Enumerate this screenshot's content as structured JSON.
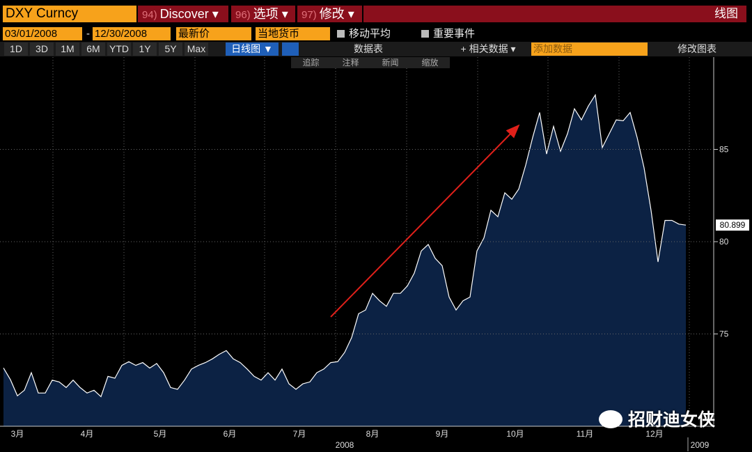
{
  "toolbar": {
    "security": "DXY Curncy",
    "menus": [
      {
        "num": "94)",
        "label": "Discover ▾"
      },
      {
        "num": "96)",
        "label": "选项 ▾"
      },
      {
        "num": "97)",
        "label": "修改 ▾"
      }
    ],
    "view_title": "线图"
  },
  "controls": {
    "start_date": "03/01/2008",
    "date_sep": "-",
    "end_date": "12/30/2008",
    "price_field": "最新价",
    "currency": "当地货币",
    "checkboxes": [
      "移动平均",
      "重要事件"
    ]
  },
  "range_buttons": [
    "1D",
    "3D",
    "1M",
    "6M",
    "YTD",
    "1Y",
    "5Y",
    "Max"
  ],
  "chart_style": "日线图 ▼",
  "data_table": "数据表",
  "related": "+ 相关数据 ▾",
  "add_data": "添加数据",
  "edit_chart": "修改图表",
  "tools": [
    "追踪",
    "注释",
    "新闻",
    "缩放"
  ],
  "watermark": "招财迪女侠",
  "chart_data": {
    "type": "area",
    "color": "#0c2244",
    "line_color": "#ffffff",
    "values": [
      73.16,
      72.52,
      71.65,
      71.95,
      72.9,
      71.8,
      71.8,
      72.5,
      72.4,
      72.1,
      72.5,
      72.1,
      71.8,
      71.95,
      71.6,
      72.7,
      72.6,
      73.3,
      73.5,
      73.3,
      73.45,
      73.15,
      73.4,
      72.9,
      72.1,
      72.0,
      72.5,
      73.1,
      73.3,
      73.45,
      73.65,
      73.9,
      74.1,
      73.65,
      73.45,
      73.1,
      72.7,
      72.5,
      72.9,
      72.5,
      73.1,
      72.3,
      72.0,
      72.3,
      72.4,
      72.9,
      73.1,
      73.45,
      73.5,
      74.0,
      74.8,
      76.1,
      76.3,
      77.2,
      76.8,
      76.5,
      77.2,
      77.2,
      77.6,
      78.3,
      79.5,
      79.85,
      79.1,
      78.7,
      77.0,
      76.3,
      76.8,
      77.0,
      79.5,
      80.2,
      81.7,
      81.35,
      82.65,
      82.3,
      82.85,
      84.15,
      85.65,
      87.0,
      84.75,
      86.25,
      84.9,
      85.85,
      87.2,
      86.6,
      87.35,
      87.95,
      85.1,
      85.85,
      86.6,
      86.55,
      87.0,
      85.65,
      84.0,
      81.7,
      78.9,
      81.15,
      81.15,
      80.95,
      80.899
    ],
    "xlim": [
      -0.5,
      102
    ],
    "ylim": [
      70,
      90
    ],
    "yticks": [
      75,
      80,
      85
    ],
    "grid": true,
    "xticks": [
      {
        "value": 2,
        "label": "3月"
      },
      {
        "value": 12,
        "label": "4月"
      },
      {
        "value": 22.5,
        "label": "5月"
      },
      {
        "value": 32.5,
        "label": "6月"
      },
      {
        "value": 42.5,
        "label": "7月"
      },
      {
        "value": 53,
        "label": "8月"
      },
      {
        "value": 63,
        "label": "9月"
      },
      {
        "value": 73.5,
        "label": "10月"
      },
      {
        "value": 83.5,
        "label": "11月"
      },
      {
        "value": 93.5,
        "label": "12月"
      }
    ],
    "year_labels": [
      {
        "value": 49,
        "label": "2008"
      },
      {
        "value": 100,
        "label": "2009"
      }
    ]
  }
}
